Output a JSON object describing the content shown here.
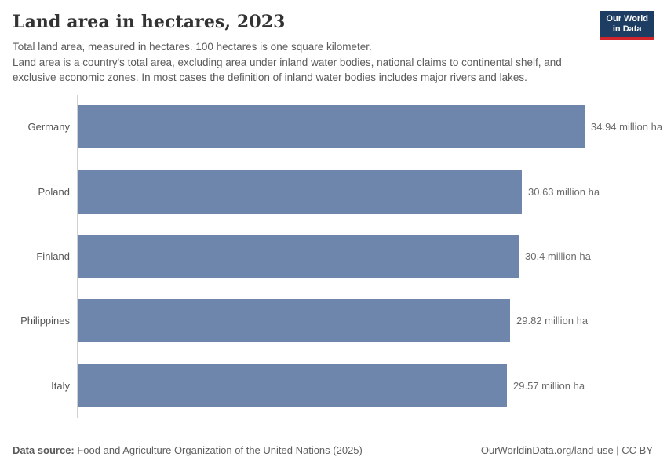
{
  "header": {
    "title": "Land area in hectares, 2023",
    "subtitle_line1": "Total land area, measured in hectares. 100 hectares is one square kilometer.",
    "subtitle_line2": "Land area is a country's total area, excluding area under inland water bodies, national claims to continental shelf, and exclusive economic zones. In most cases the definition of inland water bodies includes major rivers and lakes.",
    "logo": {
      "line1": "Our World",
      "line2": "in Data"
    }
  },
  "chart_data": {
    "type": "bar",
    "orientation": "horizontal",
    "title": "Land area in hectares, 2023",
    "categories": [
      "Germany",
      "Poland",
      "Finland",
      "Philippines",
      "Italy"
    ],
    "values": [
      34.94,
      30.63,
      30.4,
      29.82,
      29.57
    ],
    "value_labels": [
      "34.94 million ha",
      "30.63 million ha",
      "30.4 million ha",
      "29.82 million ha",
      "29.57 million ha"
    ],
    "unit": "million ha",
    "xlim": [
      0,
      34.94
    ],
    "grid": false,
    "legend": "none",
    "bar_color": "#6f86ac"
  },
  "colors": {
    "bar": "#6f86ac",
    "logo_navy": "#1d3d63",
    "logo_red": "#d1242b",
    "axis_line": "#d0d0d0",
    "title_text": "#333333",
    "body_text": "#5b5b5b"
  },
  "footer": {
    "source_label": "Data source:",
    "source_text": " Food and Agriculture Organization of the United Nations (2025)",
    "rights": "OurWorldinData.org/land-use | CC BY"
  }
}
